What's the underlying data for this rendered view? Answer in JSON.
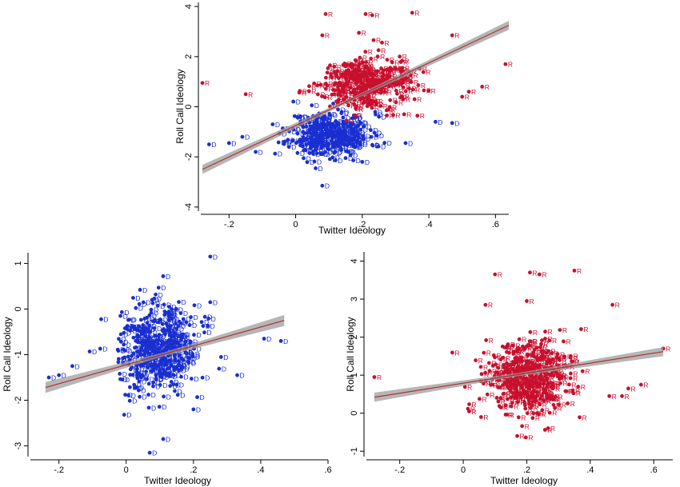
{
  "colors": {
    "dem": "#1a2fd0",
    "rep": "#c8102e",
    "fit": "#b03030",
    "ci": "#9a9a9a",
    "axis": "#000000"
  },
  "chart_data": [
    {
      "id": "all",
      "type": "scatter",
      "xlabel": "Twitter Ideology",
      "ylabel": "Roll Call Ideology",
      "xlim": [
        -0.28,
        0.64
      ],
      "ylim": [
        -4.1,
        4.1
      ],
      "xticks": [
        -0.2,
        0,
        0.2,
        0.4,
        0.6
      ],
      "xtick_labels": [
        "-.2",
        "0",
        ".2",
        ".4",
        ".6"
      ],
      "yticks": [
        -4,
        -2,
        0,
        2,
        4
      ],
      "ytick_labels": [
        "-4",
        "-2",
        "0",
        "2",
        "4"
      ],
      "grid": false,
      "fit_line": {
        "x": [
          -0.28,
          0.64
        ],
        "y": [
          -2.5,
          3.25
        ],
        "ci_halfwidth": 0.18
      },
      "series": [
        {
          "party": "D",
          "label": "D",
          "color_key": "dem",
          "cloud": {
            "n": 330,
            "x_mean": 0.1,
            "x_sd": 0.06,
            "y_mean": -1.1,
            "y_sd": 0.45,
            "seed": 11
          },
          "points": [
            [
              -0.26,
              -1.5
            ],
            [
              -0.2,
              -1.45
            ],
            [
              -0.16,
              -1.2
            ],
            [
              -0.12,
              -1.8
            ],
            [
              0.33,
              -1.45
            ],
            [
              0.42,
              -0.6
            ],
            [
              0.47,
              -0.65
            ],
            [
              0.08,
              -3.15
            ],
            [
              0.2,
              -2.2
            ],
            [
              0.25,
              -0.4
            ]
          ]
        },
        {
          "party": "R",
          "label": "R",
          "color_key": "rep",
          "cloud": {
            "n": 330,
            "x_mean": 0.2,
            "x_sd": 0.07,
            "y_mean": 0.95,
            "y_sd": 0.5,
            "seed": 29
          },
          "points": [
            [
              -0.28,
              0.95
            ],
            [
              -0.15,
              0.5
            ],
            [
              0.09,
              3.7
            ],
            [
              0.21,
              3.7
            ],
            [
              0.23,
              3.65
            ],
            [
              0.35,
              3.75
            ],
            [
              0.47,
              2.85
            ],
            [
              0.63,
              1.7
            ],
            [
              0.08,
              2.85
            ],
            [
              0.19,
              2.95
            ],
            [
              0.52,
              0.6
            ],
            [
              0.56,
              0.8
            ],
            [
              0.5,
              0.4
            ]
          ]
        }
      ]
    },
    {
      "id": "dem",
      "type": "scatter",
      "xlabel": "Twitter Ideology",
      "ylabel": "Roll Call Ideology",
      "xlim": [
        -0.28,
        0.6
      ],
      "ylim": [
        -3.2,
        1.2
      ],
      "xticks": [
        -0.2,
        0,
        0.2,
        0.4,
        0.6
      ],
      "xtick_labels": [
        "-.2",
        "0",
        ".2",
        ".4",
        ".6"
      ],
      "yticks": [
        -3,
        -2,
        -1,
        0,
        1
      ],
      "ytick_labels": [
        "-3",
        "-2",
        "-1",
        "0",
        "1"
      ],
      "grid": false,
      "fit_line": {
        "x": [
          -0.24,
          0.47
        ],
        "y": [
          -1.72,
          -0.25
        ],
        "ci_halfwidth": 0.12
      },
      "series": [
        {
          "party": "D",
          "label": "D",
          "color_key": "dem",
          "cloud": {
            "n": 420,
            "x_mean": 0.09,
            "x_sd": 0.06,
            "y_mean": -0.9,
            "y_sd": 0.45,
            "seed": 47
          },
          "points": [
            [
              0.25,
              1.15
            ],
            [
              0.11,
              0.72
            ],
            [
              -0.23,
              -1.5
            ],
            [
              -0.2,
              -1.45
            ],
            [
              -0.16,
              -1.25
            ],
            [
              0.33,
              -1.45
            ],
            [
              0.41,
              -0.65
            ],
            [
              0.46,
              -0.7
            ],
            [
              0.07,
              -3.15
            ],
            [
              0.11,
              -2.85
            ],
            [
              0.2,
              -2.2
            ],
            [
              0.25,
              0.15
            ]
          ]
        }
      ]
    },
    {
      "id": "rep",
      "type": "scatter",
      "xlabel": "Twitter Ideology",
      "ylabel": "Roll Call Ideology",
      "xlim": [
        -0.3,
        0.66
      ],
      "ylim": [
        -1.1,
        4.2
      ],
      "xticks": [
        -0.2,
        0,
        0.2,
        0.4,
        0.6
      ],
      "xtick_labels": [
        "-.2",
        "0",
        ".2",
        ".4",
        ".6"
      ],
      "yticks": [
        -1,
        0,
        1,
        2,
        3,
        4
      ],
      "ytick_labels": [
        "-1",
        "0",
        "1",
        "2",
        "3",
        "4"
      ],
      "grid": false,
      "fit_line": {
        "x": [
          -0.28,
          0.63
        ],
        "y": [
          0.42,
          1.62
        ],
        "ci_halfwidth": 0.12
      },
      "series": [
        {
          "party": "R",
          "label": "R",
          "color_key": "rep",
          "cloud": {
            "n": 420,
            "x_mean": 0.2,
            "x_sd": 0.07,
            "y_mean": 0.95,
            "y_sd": 0.5,
            "seed": 83
          },
          "points": [
            [
              -0.28,
              0.95
            ],
            [
              0.1,
              3.65
            ],
            [
              0.21,
              3.7
            ],
            [
              0.24,
              3.65
            ],
            [
              0.35,
              3.75
            ],
            [
              0.47,
              2.85
            ],
            [
              0.07,
              2.85
            ],
            [
              0.2,
              2.95
            ],
            [
              0.63,
              1.7
            ],
            [
              0.52,
              0.65
            ],
            [
              0.56,
              0.75
            ],
            [
              0.17,
              -0.6
            ],
            [
              0.46,
              0.45
            ],
            [
              0.5,
              0.45
            ]
          ]
        }
      ]
    }
  ]
}
